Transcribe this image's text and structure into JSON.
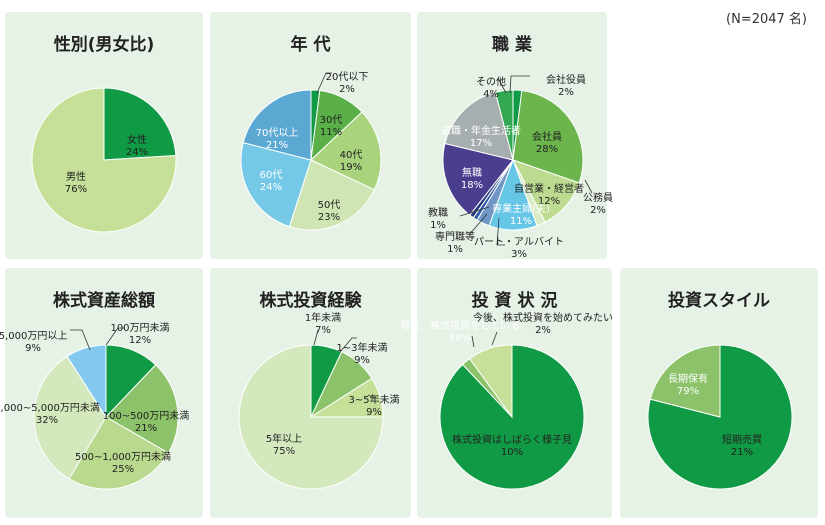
{
  "note": "(N=2047 名)",
  "colors": {
    "panel_bg": "#e6f2e6"
  },
  "chart_data": [
    {
      "id": "gender",
      "type": "pie",
      "title": "性別(男女比)",
      "slices": [
        {
          "name": "女性",
          "value": 24,
          "label": "24%",
          "color": "#119a45",
          "light": false
        },
        {
          "name": "男性",
          "value": 76,
          "label": "76%",
          "color": "#c6e09a",
          "light": false
        }
      ]
    },
    {
      "id": "age",
      "type": "pie",
      "title": "年 代",
      "slices": [
        {
          "name": "20代以下",
          "value": 2,
          "label": "2%",
          "color": "#119a45",
          "light": false
        },
        {
          "name": "30代",
          "value": 11,
          "label": "11%",
          "color": "#5aaf48",
          "light": false
        },
        {
          "name": "40代",
          "value": 19,
          "label": "19%",
          "color": "#a9d37c",
          "light": false
        },
        {
          "name": "50代",
          "value": 23,
          "label": "23%",
          "color": "#cfe6b4",
          "light": false
        },
        {
          "name": "60代",
          "value": 24,
          "label": "24%",
          "color": "#76c9e6",
          "light": true
        },
        {
          "name": "70代以上",
          "value": 21,
          "label": "21%",
          "color": "#5ba9d2",
          "light": true
        }
      ]
    },
    {
      "id": "job",
      "type": "pie",
      "title": "職 業",
      "slices": [
        {
          "name": "会社役員",
          "value": 2,
          "label": "2%",
          "color": "#119a45",
          "light": false
        },
        {
          "name": "会社員",
          "value": 28,
          "label": "28%",
          "color": "#6bb54c",
          "light": false
        },
        {
          "name": "自営業・経営者",
          "value": 12,
          "label": "12%",
          "color": "#bcdb90",
          "light": false
        },
        {
          "name": "公務員",
          "value": 2,
          "label": "2%",
          "color": "#d9ecc6",
          "light": false
        },
        {
          "name": "専業主婦(夫)",
          "value": 11,
          "label": "11%",
          "color": "#66c6e6",
          "light": true
        },
        {
          "name": "パート・アルバイト",
          "value": 3,
          "label": "3%",
          "color": "#7096c6",
          "light": false
        },
        {
          "name": "専門職等",
          "value": 1,
          "label": "1%",
          "color": "#2f5aa3",
          "light": false
        },
        {
          "name": "教職",
          "value": 1,
          "label": "1%",
          "color": "#243b7a",
          "light": false
        },
        {
          "name": "無職",
          "value": 18,
          "label": "18%",
          "color": "#4a3f8f",
          "light": true
        },
        {
          "name": "退職・年金生活者",
          "value": 17,
          "label": "17%",
          "color": "#a7aeb0",
          "light": true
        },
        {
          "name": "その他",
          "value": 4,
          "label": "4%",
          "color": "#33a853",
          "light": false
        }
      ]
    },
    {
      "id": "assets",
      "type": "pie",
      "title": "株式資産総額",
      "slices": [
        {
          "name": "100万円未満",
          "value": 12,
          "label": "12%",
          "color": "#119a45",
          "light": false
        },
        {
          "name": "100~500万円未満",
          "value": 21,
          "label": "21%",
          "color": "#8cc26a",
          "light": false
        },
        {
          "name": "500~1,000万円未満",
          "value": 25,
          "label": "25%",
          "color": "#b9d98e",
          "light": false
        },
        {
          "name": "1,000~5,000万円未満",
          "value": 32,
          "label": "32%",
          "color": "#d4e8bd",
          "light": false
        },
        {
          "name": "5,000万円以上",
          "value": 9,
          "label": "9%",
          "color": "#82c8ef",
          "light": false
        }
      ]
    },
    {
      "id": "experience",
      "type": "pie",
      "title": "株式投資経験",
      "slices": [
        {
          "name": "1年未満",
          "value": 7,
          "label": "7%",
          "color": "#119a45",
          "light": false
        },
        {
          "name": "1~3年未満",
          "value": 9,
          "label": "9%",
          "color": "#8cc26a",
          "light": false
        },
        {
          "name": "3~5年未満",
          "value": 9,
          "label": "9%",
          "color": "#c6e09a",
          "light": false
        },
        {
          "name": "5年以上",
          "value": 75,
          "label": "75%",
          "color": "#d4e8bd",
          "light": false
        }
      ]
    },
    {
      "id": "status",
      "type": "pie",
      "title": "投 資 状 況",
      "slices": [
        {
          "name": "現在、株式投資をしている",
          "value": 88,
          "label": "88%",
          "color": "#119a45",
          "light": true
        },
        {
          "name": "今後、株式投資を始めてみたい",
          "value": 2,
          "label": "2%",
          "color": "#8cc26a",
          "light": false
        },
        {
          "name": "株式投資はしばらく様子見",
          "value": 10,
          "label": "10%",
          "color": "#c6e09a",
          "light": false
        }
      ]
    },
    {
      "id": "style",
      "type": "pie",
      "title": "投資スタイル",
      "slices": [
        {
          "name": "長期保有",
          "value": 79,
          "label": "79%",
          "color": "#119a45",
          "light": true
        },
        {
          "name": "短期売買",
          "value": 21,
          "label": "21%",
          "color": "#8cc26a",
          "light": false
        }
      ]
    }
  ]
}
